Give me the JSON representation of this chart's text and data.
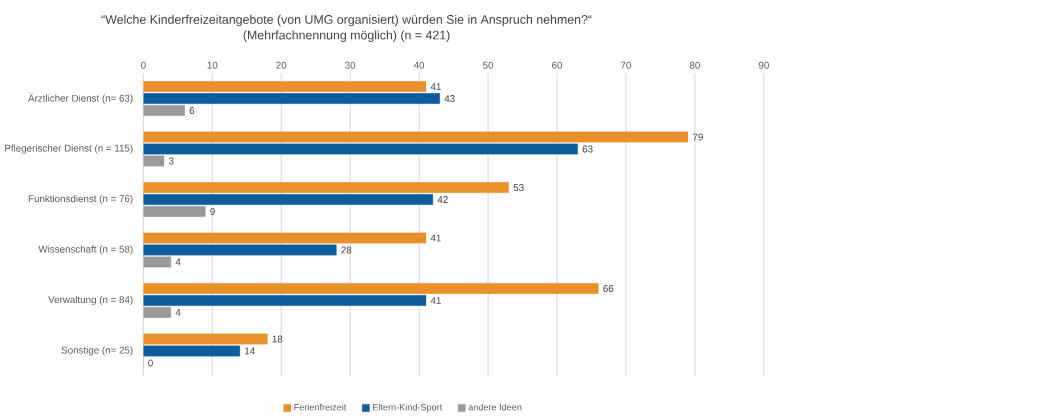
{
  "chart_data": {
    "type": "bar",
    "orientation": "horizontal",
    "title": "“Welche Kinderfreizeitangebote (von UMG organisiert) würden Sie in Anspruch nehmen?“",
    "subtitle": "(Mehrfachnennung möglich) (n = 421)",
    "categories": [
      "Ärztlicher Dienst (n= 63)",
      "Pflegerischer Dienst (n = 115)",
      "Funktionsdienst (n = 76)",
      "Wissenschaft (n = 58)",
      "Verwaltung (n = 84)",
      "Sonstige (n= 25)"
    ],
    "series": [
      {
        "name": "Ferienfreizeit",
        "color": "#e8912a",
        "values": [
          41,
          79,
          53,
          41,
          66,
          18
        ]
      },
      {
        "name": "Eltern-Kind-Sport",
        "color": "#0e5c9c",
        "values": [
          43,
          63,
          42,
          28,
          41,
          14
        ]
      },
      {
        "name": "andere Ideen",
        "color": "#9a9a9a",
        "values": [
          6,
          3,
          9,
          4,
          4,
          0
        ]
      }
    ],
    "xlim": [
      0,
      90
    ],
    "xticks": [
      0,
      10,
      20,
      30,
      40,
      50,
      60,
      70,
      80,
      90
    ],
    "grid": "x",
    "legend": "bottom",
    "data_labels": true
  }
}
